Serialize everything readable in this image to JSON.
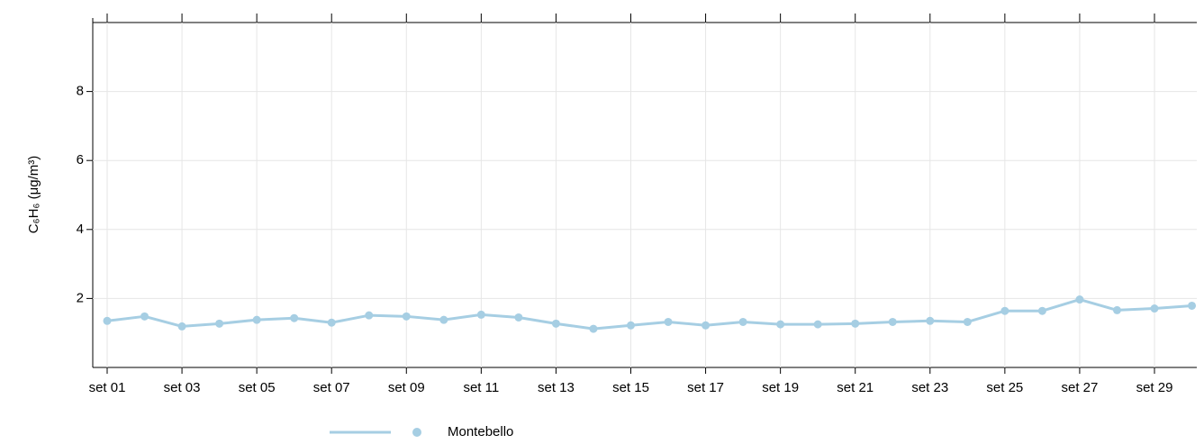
{
  "chart_data": {
    "type": "line",
    "y_label": "C₆H₆ (μg/m³)",
    "categories": [
      "set 01",
      null,
      "set 03",
      null,
      "set 05",
      null,
      "set 07",
      null,
      "set 09",
      null,
      "set 11",
      null,
      "set 13",
      null,
      "set 15",
      null,
      "set 17",
      null,
      "set 19",
      null,
      "set 21",
      null,
      "set 23",
      null,
      "set 25",
      null,
      "set 27",
      null,
      "set 29",
      null
    ],
    "series": [
      {
        "name": "Montebello",
        "color": "#a6cee3",
        "values": [
          1.35,
          1.48,
          1.19,
          1.27,
          1.38,
          1.43,
          1.3,
          1.51,
          1.48,
          1.38,
          1.53,
          1.45,
          1.27,
          1.12,
          1.22,
          1.32,
          1.22,
          1.32,
          1.25,
          1.25,
          1.27,
          1.32,
          1.35,
          1.32,
          1.64,
          1.64,
          1.97,
          1.66,
          1.71,
          1.79
        ]
      }
    ],
    "ylim": [
      0,
      10
    ],
    "yticks": [
      2,
      4,
      6,
      8
    ],
    "grid": true
  }
}
